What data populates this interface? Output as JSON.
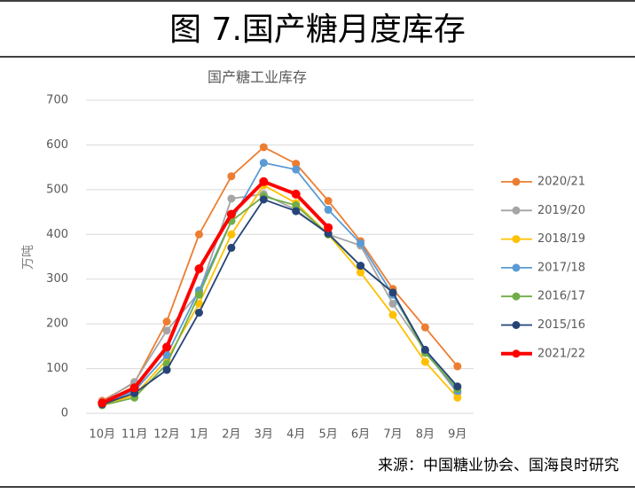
{
  "header": {
    "title": "图 7.国产糖月度库存"
  },
  "footer": {
    "source": "来源：中国糖业协会、国海良时研究"
  },
  "chart_data": {
    "type": "line",
    "title": "国产糖工业库存",
    "y_label": "万吨",
    "categories": [
      "10月",
      "11月",
      "12月",
      "1月",
      "2月",
      "3月",
      "4月",
      "5月",
      "6月",
      "7月",
      "8月",
      "9月"
    ],
    "ylim": [
      0,
      700
    ],
    "yticks": [
      0,
      100,
      200,
      300,
      400,
      500,
      600,
      700
    ],
    "grid": true,
    "legend": "right",
    "series": [
      {
        "name": "2020/21",
        "color": "#ED7D31",
        "values": [
          28,
          68,
          205,
          400,
          530,
          595,
          558,
          475,
          385,
          278,
          192,
          105
        ]
      },
      {
        "name": "2019/20",
        "color": "#A5A5A5",
        "values": [
          25,
          70,
          185,
          270,
          480,
          490,
          455,
          400,
          375,
          245,
          140,
          45
        ]
      },
      {
        "name": "2018/19",
        "color": "#FFC000",
        "values": [
          20,
          40,
          120,
          245,
          400,
          510,
          470,
          400,
          315,
          220,
          115,
          35
        ]
      },
      {
        "name": "2017/18",
        "color": "#5B9BD5",
        "values": [
          22,
          50,
          130,
          275,
          430,
          560,
          545,
          455,
          380,
          265,
          140,
          50
        ]
      },
      {
        "name": "2016/17",
        "color": "#70AD47",
        "values": [
          18,
          35,
          110,
          265,
          430,
          485,
          465,
          400,
          330,
          270,
          135,
          55
        ]
      },
      {
        "name": "2015/16",
        "color": "#264478",
        "values": [
          20,
          45,
          97,
          225,
          370,
          478,
          452,
          402,
          330,
          270,
          142,
          60
        ]
      },
      {
        "name": "2021/22",
        "color": "#FF0000",
        "values": [
          23,
          57,
          148,
          323,
          445,
          518,
          490,
          415,
          null,
          null,
          null,
          null
        ]
      }
    ]
  }
}
